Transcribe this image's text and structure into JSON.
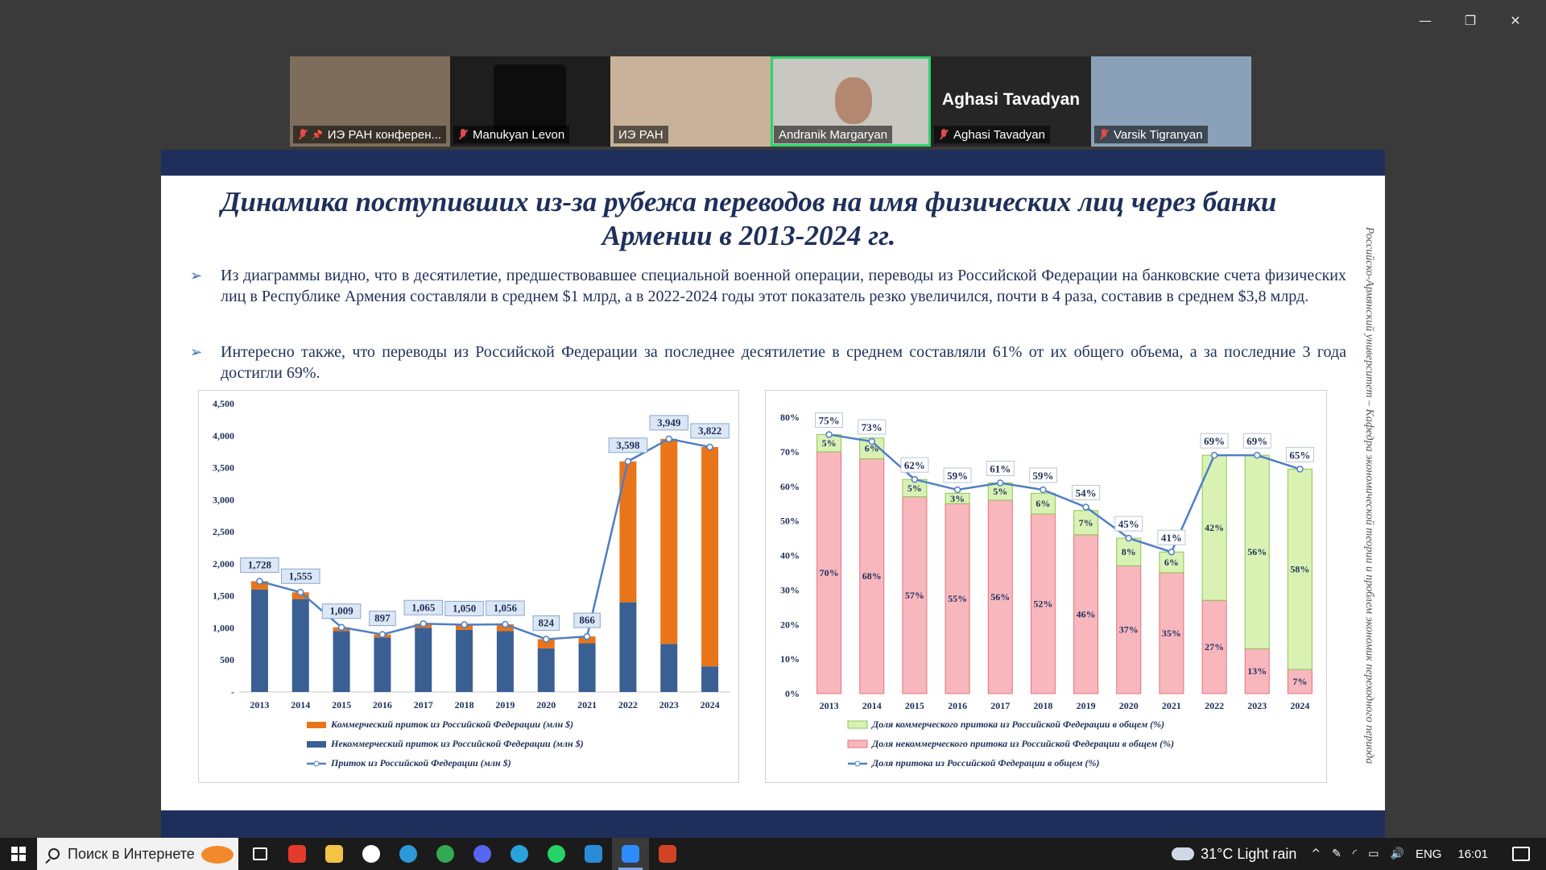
{
  "window_controls": {
    "minimize": "—",
    "restore": "❐",
    "close": "✕"
  },
  "participants": [
    {
      "name": "ИЭ РАН конферен...",
      "muted": true,
      "pinned": true,
      "bg": "#7d6d5a",
      "show_name_big": false
    },
    {
      "name": "Manukyan Levon",
      "muted": true,
      "pinned": false,
      "bg": "#1e1e1e",
      "show_name_big": false
    },
    {
      "name": "ИЭ РАН",
      "muted": false,
      "pinned": false,
      "bg": "#c8b39a",
      "show_name_big": false
    },
    {
      "name": "Andranik Margaryan",
      "muted": false,
      "pinned": false,
      "bg": "#c9c7c2",
      "active": true,
      "show_name_big": false
    },
    {
      "name": "Aghasi Tavadyan",
      "muted": true,
      "pinned": false,
      "bg": "#262626",
      "show_name_big": true,
      "big_name": "Aghasi Tavadyan"
    },
    {
      "name": "Varsik Tigranyan",
      "muted": true,
      "pinned": false,
      "bg": "#8aa1b8",
      "show_name_big": false
    }
  ],
  "slide": {
    "title": "Динамика поступивших из-за рубежа переводов на имя физических лиц через банки Армении в 2013-2024 гг.",
    "bullets": [
      "Из диаграммы видно, что в десятилетие, предшествовавшее специальной военной операции, переводы из Российской Федерации на банковские счета физических лиц в Республике Армения составляли в среднем $1 млрд, а в 2022-2024 годы этот показатель резко увеличился, почти в 4 раза, составив в среднем $3,8 млрд.",
      "Интересно также, что переводы из Российской Федерации за последнее десятилетие в среднем составляли 61% от их общего объема, а за последние 3 года достигли 69%."
    ],
    "vertical_text": "Российско-Армянский университет – Кафедра экономической теории и проблем экономик переходного периода",
    "bullet_marker": "➢"
  },
  "chart_data": [
    {
      "type": "bar",
      "stacked": true,
      "categories": [
        "2013",
        "2014",
        "2015",
        "2016",
        "2017",
        "2018",
        "2019",
        "2020",
        "2021",
        "2022",
        "2023",
        "2024"
      ],
      "ylim": [
        0,
        4500
      ],
      "yticks": [
        "-",
        "500",
        "1,000",
        "1,500",
        "2,000",
        "2,500",
        "3,000",
        "3,500",
        "4,000",
        "4,500"
      ],
      "series": [
        {
          "name": "Коммерческий приток из Российской Федерации (млн $)",
          "color": "#e8751a",
          "values": [
            128,
            105,
            59,
            47,
            65,
            80,
            106,
            144,
            106,
            2198,
            3199,
            3422
          ]
        },
        {
          "name": "Некоммерческий приток из Российской Федерации (млн $)",
          "color": "#3a5f93",
          "values": [
            1600,
            1450,
            950,
            850,
            1000,
            970,
            950,
            680,
            760,
            1400,
            750,
            400
          ]
        }
      ],
      "line": {
        "name": "Приток из Российской Федерации (млн $)",
        "color": "#4f7fc4",
        "values": [
          1728,
          1555,
          1009,
          897,
          1065,
          1050,
          1056,
          824,
          866,
          3598,
          3949,
          3822
        ],
        "labels": [
          "1,728",
          "1,555",
          "1,009",
          "897",
          "1,065",
          "1,050",
          "1,056",
          "824",
          "866",
          "3,598",
          "3,949",
          "3,822"
        ]
      }
    },
    {
      "type": "bar",
      "stacked": true,
      "categories": [
        "2013",
        "2014",
        "2015",
        "2016",
        "2017",
        "2018",
        "2019",
        "2020",
        "2021",
        "2022",
        "2023",
        "2024"
      ],
      "ylim": [
        0,
        80
      ],
      "yticks": [
        "0%",
        "10%",
        "20%",
        "30%",
        "40%",
        "50%",
        "60%",
        "70%",
        "80%"
      ],
      "series": [
        {
          "name": "Доля некоммерческого притока из Российской Федерации в общем (%)",
          "color": "#f7b7bd",
          "stroke": "#e8707b",
          "values": [
            70,
            68,
            57,
            55,
            56,
            52,
            46,
            37,
            35,
            27,
            13,
            7
          ],
          "labels": [
            "70%",
            "68%",
            "57%",
            "55%",
            "56%",
            "52%",
            "46%",
            "37%",
            "35%",
            "27%",
            "13%",
            "7%"
          ]
        },
        {
          "name": "Доля коммерческого притока из Российской Федерации в общем (%)",
          "color": "#d9f2b4",
          "stroke": "#8cc653",
          "values": [
            5,
            6,
            5,
            3,
            5,
            6,
            7,
            8,
            6,
            42,
            56,
            58
          ],
          "labels": [
            "5%",
            "6%",
            "5%",
            "3%",
            "5%",
            "6%",
            "7%",
            "8%",
            "6%",
            "42%",
            "56%",
            "58%"
          ]
        }
      ],
      "line": {
        "name": "Доля притока из Российской Федерации в общем (%)",
        "color": "#4f7fc4",
        "values": [
          75,
          73,
          62,
          59,
          61,
          59,
          54,
          45,
          41,
          69,
          69,
          65
        ],
        "labels": [
          "75%",
          "73%",
          "62%",
          "59%",
          "61%",
          "59%",
          "54%",
          "45%",
          "41%",
          "69%",
          "69%",
          "65%"
        ]
      },
      "legend_order": [
        "Доля коммерческого притока из Российской Федерации в общем (%)",
        "Доля некоммерческого притока из Российской Федерации в общем (%)",
        "Доля притока из Российской Федерации в общем (%)"
      ]
    }
  ],
  "taskbar": {
    "search_placeholder": "Поиск в Интернете",
    "apps": [
      {
        "name": "task-view-icon",
        "color": "#ffffff"
      },
      {
        "name": "anydesk-icon",
        "color": "#e23b2e"
      },
      {
        "name": "file-explorer-icon",
        "color": "#f3c443"
      },
      {
        "name": "yandex-browser-icon",
        "color": "#ffffff"
      },
      {
        "name": "edge-icon",
        "color": "#2c9ad8"
      },
      {
        "name": "chrome-icon",
        "color": "#34a853"
      },
      {
        "name": "discord-icon",
        "color": "#5865f2"
      },
      {
        "name": "telegram-icon",
        "color": "#2aa3dd"
      },
      {
        "name": "whatsapp-icon",
        "color": "#25d366"
      },
      {
        "name": "vscode-icon",
        "color": "#2a8bd8"
      },
      {
        "name": "zoom-icon",
        "color": "#2d8cff",
        "active": true
      },
      {
        "name": "powerpoint-icon",
        "color": "#d04423"
      }
    ],
    "weather": "31°C  Light rain",
    "tray": {
      "chevron": "^",
      "wifi": "◜",
      "battery": "▭",
      "volume": "🔊",
      "pen": "✎"
    },
    "language": "ENG",
    "time": "16:01"
  }
}
